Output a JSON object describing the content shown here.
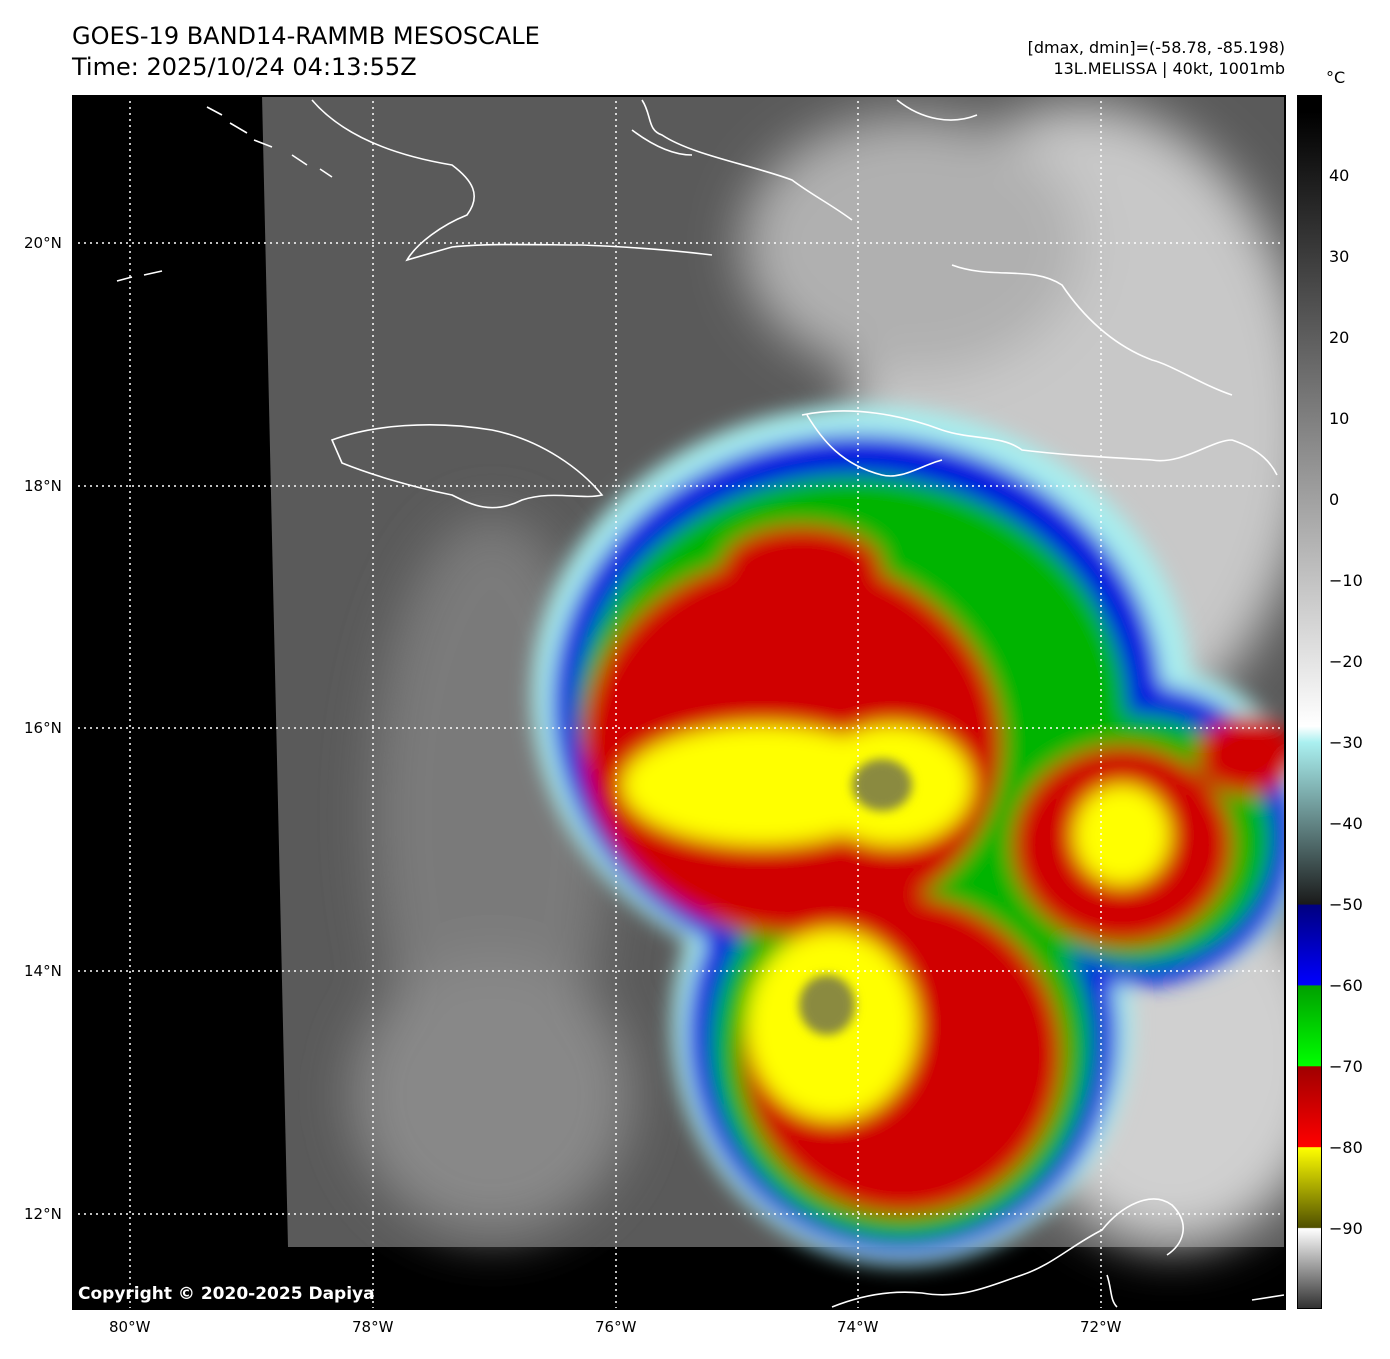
{
  "header": {
    "title_line1": "GOES-19 BAND14-RAMMB MESOSCALE",
    "title_line2": "Time: 2025/10/24 04:13:55Z",
    "range_text": "[dmax, dmin]=(-58.78, -85.198)",
    "storm_text": "13L.MELISSA | 40kt, 1001mb"
  },
  "map": {
    "lon_ticks": [
      "80°W",
      "78°W",
      "76°W",
      "74°W",
      "72°W"
    ],
    "lat_ticks": [
      "20°N",
      "18°N",
      "16°N",
      "14°N",
      "12°N"
    ],
    "copyright": "Copyright © 2020-2025 Dapiya"
  },
  "colorbar": {
    "unit": "°C",
    "ticks": [
      "40",
      "30",
      "20",
      "10",
      "0",
      "−10",
      "−20",
      "−30",
      "−40",
      "−50",
      "−60",
      "−70",
      "−80",
      "−90"
    ],
    "color_stops": [
      {
        "temp": 48,
        "color": "#000000"
      },
      {
        "temp": -28,
        "color": "#ffffff"
      },
      {
        "temp": -30,
        "color": "#aaf0f0"
      },
      {
        "temp": -50,
        "color": "#1a1a1a"
      },
      {
        "temp": -50.1,
        "color": "#000080"
      },
      {
        "temp": -60,
        "color": "#0000ff"
      },
      {
        "temp": -60.1,
        "color": "#00a000"
      },
      {
        "temp": -70,
        "color": "#00ff00"
      },
      {
        "temp": -70.1,
        "color": "#a00000"
      },
      {
        "temp": -80,
        "color": "#ff0000"
      },
      {
        "temp": -80.1,
        "color": "#ffff00"
      },
      {
        "temp": -90,
        "color": "#505000"
      },
      {
        "temp": -90.1,
        "color": "#ffffff"
      },
      {
        "temp": -100,
        "color": "#303030"
      }
    ]
  }
}
